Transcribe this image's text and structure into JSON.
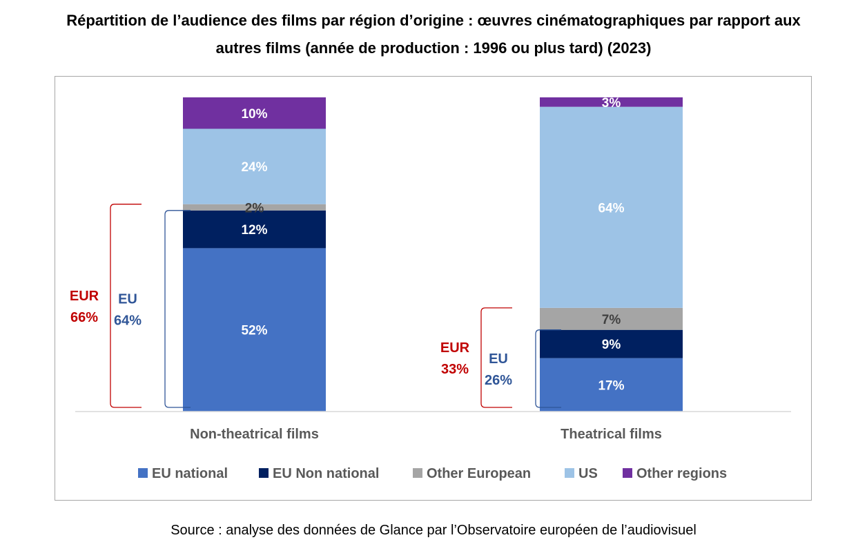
{
  "title": {
    "line1": "Répartition de l’audience des films par région d’origine : œuvres cinématographiques par rapport aux",
    "line2": "autres films (année de production : 1996 ou plus tard) (2023)"
  },
  "source": "Source : analyse des données de Glance par l’Observatoire européen de l’audiovisuel",
  "chart_data": {
    "type": "bar",
    "stacked": true,
    "percent_stacked": true,
    "categories": [
      "Non-theatrical films",
      "Theatrical films"
    ],
    "series": [
      {
        "name": "EU national",
        "color": "#4472c4",
        "label_color": "#ffffff",
        "values": [
          52,
          17
        ],
        "labels": [
          "52%",
          "17%"
        ]
      },
      {
        "name": "EU Non national",
        "color": "#002060",
        "label_color": "#ffffff",
        "values": [
          12,
          9
        ],
        "labels": [
          "12%",
          "9%"
        ]
      },
      {
        "name": "Other European",
        "color": "#a5a5a5",
        "label_color": "#404040",
        "values": [
          2,
          7
        ],
        "labels": [
          "2%",
          "7%"
        ]
      },
      {
        "name": "US",
        "color": "#9dc3e6",
        "label_color": "#ffffff",
        "values": [
          24,
          64
        ],
        "labels": [
          "24%",
          "64%"
        ]
      },
      {
        "name": "Other regions",
        "color": "#7030a0",
        "label_color": "#ffffff",
        "values": [
          10,
          3
        ],
        "labels": [
          "10%",
          "3%"
        ]
      }
    ],
    "ylim": [
      0,
      100
    ],
    "legend_position": "bottom",
    "grid": false,
    "annotations": [
      {
        "category": "Non-theatrical films",
        "group": "EUR",
        "label": "EUR",
        "value_label": "66%",
        "value": 66,
        "color": "#c00000"
      },
      {
        "category": "Non-theatrical films",
        "group": "EU",
        "label": "EU",
        "value_label": "64%",
        "value": 64,
        "color": "#2f5597"
      },
      {
        "category": "Theatrical films",
        "group": "EUR",
        "label": "EUR",
        "value_label": "33%",
        "value": 33,
        "color": "#c00000"
      },
      {
        "category": "Theatrical films",
        "group": "EU",
        "label": "EU",
        "value_label": "26%",
        "value": 26,
        "color": "#2f5597"
      }
    ]
  }
}
